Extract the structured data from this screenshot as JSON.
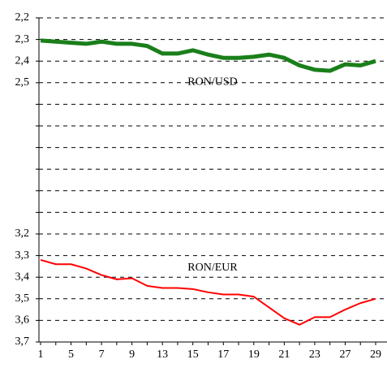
{
  "chart_data": {
    "type": "line",
    "categories": [
      "1",
      null,
      "5",
      null,
      "7",
      null,
      "9",
      null,
      "13",
      null,
      "15",
      null,
      "17",
      null,
      "19",
      null,
      "21",
      null,
      "23",
      null,
      "27",
      null,
      "29"
    ],
    "series": [
      {
        "name": "RON/USD",
        "color": "#1a7f1a",
        "values": [
          2.305,
          2.31,
          2.315,
          2.32,
          2.31,
          2.32,
          2.32,
          2.33,
          2.365,
          2.365,
          2.35,
          2.37,
          2.385,
          2.385,
          2.38,
          2.37,
          2.385,
          2.42,
          2.44,
          2.445,
          2.415,
          2.42,
          2.4
        ]
      },
      {
        "name": "RON/EUR",
        "color": "#ff0000",
        "values": [
          3.32,
          3.34,
          3.34,
          3.36,
          3.39,
          3.41,
          3.405,
          3.44,
          3.45,
          3.45,
          3.455,
          3.47,
          3.48,
          3.48,
          3.49,
          3.54,
          3.59,
          3.62,
          3.585,
          3.585,
          3.55,
          3.52,
          3.5
        ]
      }
    ],
    "ylim": [
      2.2,
      3.7
    ],
    "y_inverted": true,
    "yticks": [
      {
        "value": 2.2,
        "label": "2,2"
      },
      {
        "value": 2.3,
        "label": "2,3"
      },
      {
        "value": 2.4,
        "label": "2,4"
      },
      {
        "value": 2.5,
        "label": "2,5"
      },
      {
        "value": 3.2,
        "label": "3,2"
      },
      {
        "value": 3.3,
        "label": "3,3"
      },
      {
        "value": 3.4,
        "label": "3,4"
      },
      {
        "value": 3.5,
        "label": "3,5"
      },
      {
        "value": 3.6,
        "label": "3,6"
      },
      {
        "value": 3.7,
        "label": "3,7"
      }
    ],
    "unlabeled_grid": [
      2.6,
      2.7,
      2.8,
      2.9,
      3.0,
      3.1
    ],
    "grid": true
  }
}
